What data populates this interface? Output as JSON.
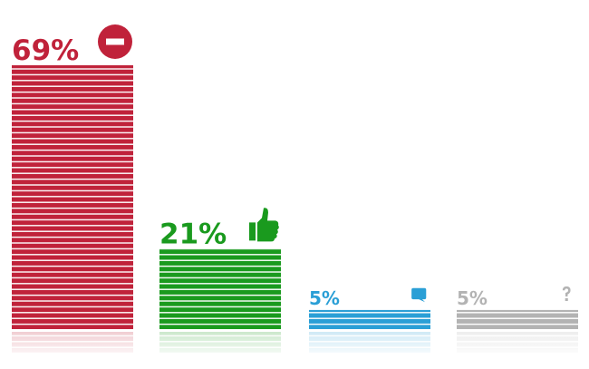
{
  "chart_data": {
    "type": "bar",
    "categories": [
      null,
      null,
      null,
      null
    ],
    "values": [
      69,
      21,
      5,
      5
    ],
    "value_labels": [
      "69%",
      "21%",
      "5%",
      "5%"
    ],
    "colors": [
      "#c0223a",
      "#1a9a1e",
      "#2a9fd6",
      "#b3b3b3"
    ]
  }
}
